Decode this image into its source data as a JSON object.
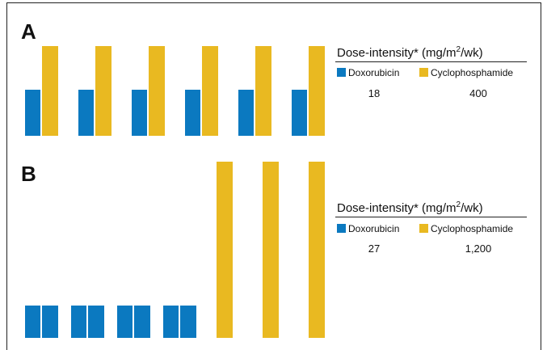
{
  "panels": [
    {
      "label": "A",
      "legend": {
        "title": {
          "before": "Dose-intensity* (mg/m",
          "sup": "2",
          "after": "/wk)"
        },
        "items": [
          {
            "name": "Doxorubicin",
            "value": "18"
          },
          {
            "name": "Cyclophosphamide",
            "value": "400"
          }
        ]
      }
    },
    {
      "label": "B",
      "legend": {
        "title": {
          "before": "Dose-intensity* (mg/m",
          "sup": "2",
          "after": "/wk)"
        },
        "items": [
          {
            "name": "Doxorubicin",
            "value": "27"
          },
          {
            "name": "Cyclophosphamide",
            "value": "1,200"
          }
        ]
      }
    }
  ]
}
